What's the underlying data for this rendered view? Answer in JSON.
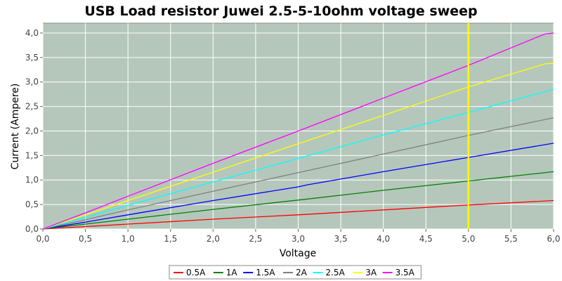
{
  "chart_data": {
    "type": "line",
    "title": "USB Load resistor Juwei 2.5-5-10ohm voltage sweep",
    "xlabel": "Voltage",
    "ylabel": "Current (Ampere)",
    "xlim": [
      0,
      6
    ],
    "ylim": [
      0,
      4.2
    ],
    "x_ticks": [
      "0,0",
      "0,5",
      "1,0",
      "1,5",
      "2,0",
      "2,5",
      "3,0",
      "3,5",
      "4,0",
      "4,5",
      "5,0",
      "5,5",
      "6,0"
    ],
    "y_ticks": [
      "0,0",
      "0,5",
      "1,0",
      "1,5",
      "2,0",
      "2,5",
      "3,0",
      "3,5",
      "4,0"
    ],
    "grid": true,
    "legend_position": "bottom",
    "marker_line": {
      "x": 5.0,
      "color": "#ffff00"
    },
    "colors": {
      "plot_background": "#b5c7bb",
      "grid": "#ffffff"
    },
    "series": [
      {
        "name": "0.5A",
        "color": "#ff0000",
        "x": [
          0,
          0.5,
          1,
          2,
          3,
          4,
          5,
          6
        ],
        "values": [
          0,
          0.05,
          0.1,
          0.2,
          0.29,
          0.39,
          0.49,
          0.58
        ]
      },
      {
        "name": "1A",
        "color": "#008000",
        "x": [
          0,
          0.5,
          1,
          2,
          3,
          4,
          5,
          6
        ],
        "values": [
          0,
          0.1,
          0.2,
          0.4,
          0.59,
          0.79,
          0.98,
          1.17
        ]
      },
      {
        "name": "1.5A",
        "color": "#0000ff",
        "x": [
          0,
          0.5,
          1,
          2,
          3,
          3.1,
          4,
          5,
          6
        ],
        "values": [
          0,
          0.14,
          0.29,
          0.58,
          0.86,
          0.9,
          1.17,
          1.46,
          1.75
        ]
      },
      {
        "name": "2A",
        "color": "#808080",
        "x": [
          0,
          0.5,
          1,
          2,
          3,
          4,
          5,
          6
        ],
        "values": [
          0,
          0.19,
          0.39,
          0.77,
          1.15,
          1.53,
          1.91,
          2.27
        ]
      },
      {
        "name": "2.5A",
        "color": "#00ffff",
        "x": [
          0,
          0.5,
          1,
          2,
          3,
          4,
          5,
          6
        ],
        "values": [
          0,
          0.24,
          0.48,
          0.96,
          1.44,
          1.92,
          2.38,
          2.85
        ]
      },
      {
        "name": "3A",
        "color": "#ffff00",
        "x": [
          0,
          0.5,
          1,
          2,
          3,
          4,
          5,
          5.9,
          6
        ],
        "values": [
          0,
          0.29,
          0.58,
          1.16,
          1.74,
          2.32,
          2.9,
          3.37,
          3.38
        ]
      },
      {
        "name": "3.5A",
        "color": "#ff00ff",
        "x": [
          0,
          0.5,
          1,
          2,
          3,
          4,
          5,
          5.9,
          6
        ],
        "values": [
          0,
          0.33,
          0.67,
          1.34,
          2.0,
          2.67,
          3.34,
          3.98,
          4.0
        ]
      }
    ]
  }
}
